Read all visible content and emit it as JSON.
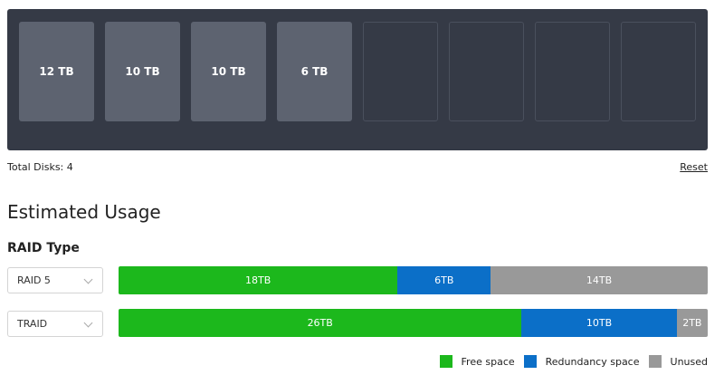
{
  "colors": {
    "free": "#1cb81c",
    "redundancy": "#0b6fc8",
    "unused": "#999999"
  },
  "bays": [
    {
      "label": "12 TB",
      "filled": true
    },
    {
      "label": "10 TB",
      "filled": true
    },
    {
      "label": "10 TB",
      "filled": true
    },
    {
      "label": "6 TB",
      "filled": true
    },
    {
      "label": "",
      "filled": false
    },
    {
      "label": "",
      "filled": false
    },
    {
      "label": "",
      "filled": false
    },
    {
      "label": "",
      "filled": false
    }
  ],
  "summary": {
    "total_disks": "Total Disks: 4",
    "reset_label": "Reset"
  },
  "usage": {
    "title": "Estimated Usage",
    "raid_type_label": "RAID Type",
    "rows": [
      {
        "raid_type": "RAID 5",
        "segments": [
          {
            "kind": "free",
            "label": "18TB",
            "tb": 18
          },
          {
            "kind": "redundancy",
            "label": "6TB",
            "tb": 6
          },
          {
            "kind": "unused",
            "label": "14TB",
            "tb": 14
          }
        ]
      },
      {
        "raid_type": "TRAID",
        "segments": [
          {
            "kind": "free",
            "label": "26TB",
            "tb": 26
          },
          {
            "kind": "redundancy",
            "label": "10TB",
            "tb": 10
          },
          {
            "kind": "unused",
            "label": "2TB",
            "tb": 2
          }
        ]
      }
    ]
  },
  "legend": [
    {
      "kind": "free",
      "label": "Free space"
    },
    {
      "kind": "redundancy",
      "label": "Redundancy space"
    },
    {
      "kind": "unused",
      "label": "Unused"
    }
  ]
}
